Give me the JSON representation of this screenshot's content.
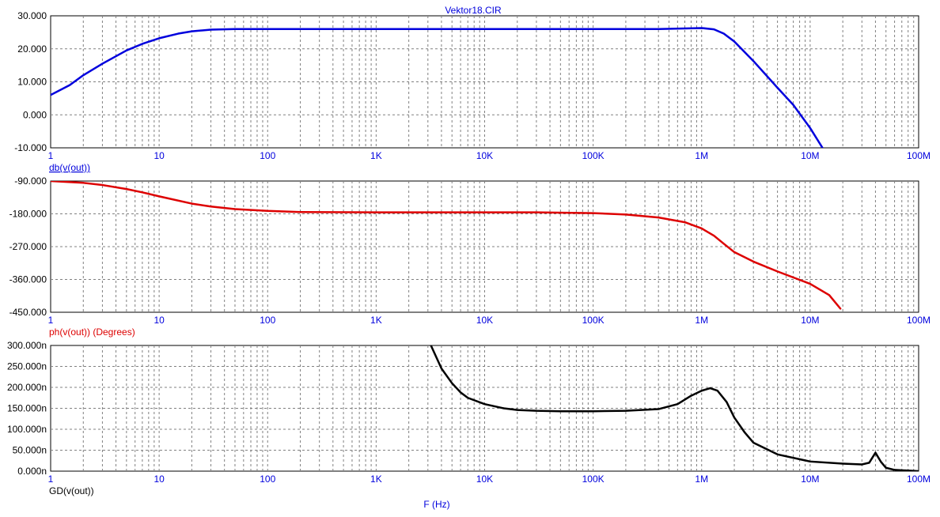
{
  "title": "Vektor18.CIR",
  "xlabel": "F (Hz)",
  "colors": {
    "blue": "#0000dd",
    "red": "#dd0000",
    "black": "#000000",
    "title": "#0000dd",
    "grid": "#808080"
  },
  "x_tick_labels": [
    "1",
    "10",
    "100",
    "1K",
    "10K",
    "100K",
    "1M",
    "10M",
    "100M"
  ],
  "chart_data": [
    {
      "type": "line",
      "x_scale": "log",
      "xlim": [
        1,
        100000000
      ],
      "ylim": [
        -10,
        30
      ],
      "y_ticks": [
        30,
        20,
        10,
        0,
        -10
      ],
      "y_tick_labels": [
        "30.000",
        "20.000",
        "10.000",
        "0.000",
        "-10.000"
      ],
      "ylabel": "db(v(out))",
      "grid": true,
      "series": [
        {
          "name": "db(v(out))",
          "color": "#0000dd",
          "x": [
            1,
            1.5,
            2,
            3,
            5,
            7,
            10,
            15,
            20,
            30,
            50,
            100,
            1000,
            10000,
            100000,
            400000,
            1000000,
            1300000,
            1600000,
            2000000,
            3000000,
            5000000,
            7000000,
            10000000,
            13000000
          ],
          "y": [
            6,
            9,
            12,
            15.5,
            19.5,
            21.5,
            23.2,
            24.6,
            25.3,
            25.8,
            26,
            26,
            26,
            26,
            26,
            26,
            26.3,
            25.9,
            24.6,
            22.2,
            16.3,
            8.2,
            3,
            -4,
            -10
          ]
        }
      ]
    },
    {
      "type": "line",
      "x_scale": "log",
      "xlim": [
        1,
        100000000
      ],
      "ylim": [
        -450,
        -90
      ],
      "y_ticks": [
        -90,
        -180,
        -270,
        -360,
        -450
      ],
      "y_tick_labels": [
        "-90.000",
        "-180.000",
        "-270.000",
        "-360.000",
        "-450.000"
      ],
      "ylabel": "ph(v(out)) (Degrees)",
      "grid": true,
      "series": [
        {
          "name": "ph(v(out)) (Degrees)",
          "color": "#dd0000",
          "x": [
            1,
            2,
            3,
            5,
            7,
            10,
            20,
            30,
            50,
            100,
            200,
            1000,
            10000,
            30000,
            100000,
            200000,
            400000,
            700000,
            1000000,
            1300000,
            1600000,
            2000000,
            3000000,
            5000000,
            10000000,
            15000000,
            19000000
          ],
          "y": [
            -90,
            -95,
            -101,
            -112,
            -121,
            -132,
            -152,
            -160,
            -167,
            -172,
            -175,
            -176,
            -176,
            -176,
            -178,
            -182,
            -190,
            -203,
            -220,
            -240,
            -262,
            -285,
            -311,
            -338,
            -372,
            -403,
            -440
          ]
        }
      ]
    },
    {
      "type": "line",
      "x_scale": "log",
      "xlim": [
        1,
        100000000
      ],
      "ylim": [
        0,
        300
      ],
      "y_ticks": [
        300,
        250,
        200,
        150,
        100,
        50,
        0
      ],
      "y_tick_labels": [
        "300.000n",
        "250.000n",
        "200.000n",
        "150.000n",
        "100.000n",
        "50.000n",
        "0.000n"
      ],
      "ylabel": "GD(v(out))",
      "grid": true,
      "series": [
        {
          "name": "GD(v(out))",
          "color": "#000000",
          "x": [
            3200,
            4000,
            5000,
            6000,
            7000,
            10000,
            15000,
            20000,
            30000,
            50000,
            100000,
            200000,
            400000,
            600000,
            800000,
            1000000,
            1200000,
            1400000,
            1700000,
            2000000,
            2500000,
            3000000,
            5000000,
            10000000,
            20000000,
            30000000,
            35000000,
            40000000,
            45000000,
            50000000,
            60000000,
            100000000
          ],
          "y": [
            300,
            245,
            210,
            188,
            175,
            160,
            150,
            146,
            144,
            143,
            143,
            144,
            148,
            160,
            180,
            192,
            198,
            192,
            165,
            128,
            92,
            68,
            40,
            23,
            18,
            16,
            20,
            44,
            22,
            8,
            3,
            0
          ]
        }
      ]
    }
  ]
}
